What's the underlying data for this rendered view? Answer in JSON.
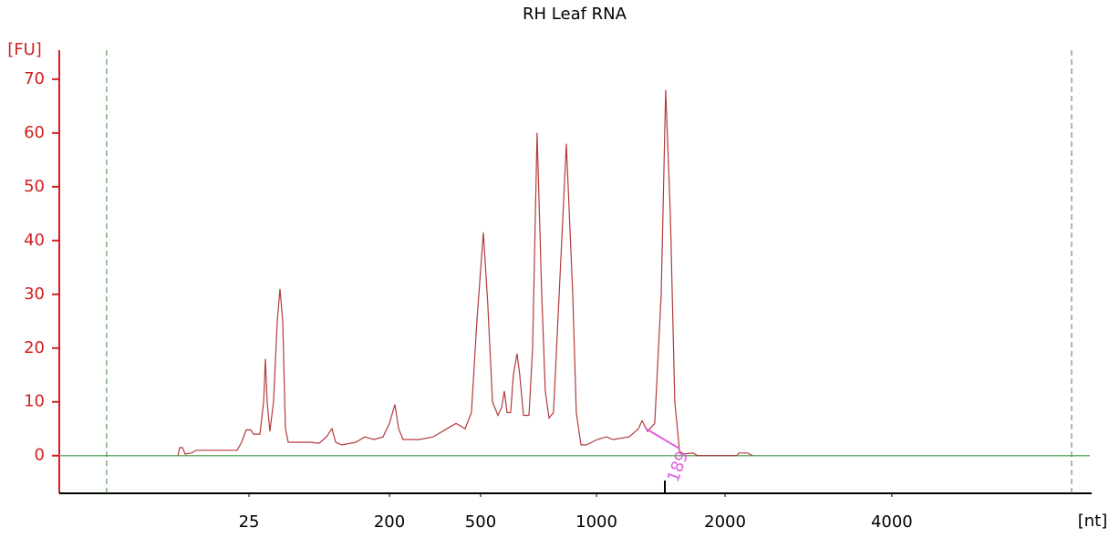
{
  "chart_data": {
    "type": "line",
    "title": "RH Leaf RNA",
    "y_label": "[FU]",
    "x_label": "[nt]",
    "x": [
      23.09,
      23.18,
      23.32,
      23.46,
      23.79,
      24.02,
      26.13,
      26.36,
      26.6,
      26.83,
      26.97,
      27.3,
      27.49,
      27.58,
      27.67,
      27.81,
      28.0,
      28.19,
      28.33,
      28.47,
      28.61,
      28.75,
      29.41,
      29.87,
      30.34,
      30.72,
      31.0,
      31.19,
      31.51,
      32.22,
      32.68,
      33.15,
      33.62,
      33.95,
      34.23,
      34.42,
      34.65,
      35.49,
      36.19,
      36.9,
      37.37,
      37.83,
      38.16,
      38.44,
      38.77,
      39.0,
      39.24,
      39.52,
      39.71,
      39.85,
      39.99,
      40.17,
      40.31,
      40.5,
      40.64,
      40.83,
      41.11,
      41.3,
      41.53,
      41.77,
      41.95,
      42.14,
      42.37,
      42.66,
      43.03,
      43.36,
      43.54,
      43.78,
      44.06,
      44.62,
      45.09,
      45.42,
      46.26,
      46.73,
      46.92,
      47.2,
      47.57,
      47.9,
      48.13,
      48.37,
      48.6,
      48.84,
      49.07,
      49.54,
      49.77,
      51.78,
      51.88,
      52.35,
      52.58
    ],
    "values": [
      0,
      1.5,
      1.5,
      0.3,
      0.5,
      1,
      1,
      2.5,
      4.8,
      4.8,
      4,
      4,
      10,
      18,
      10,
      4.5,
      10,
      25,
      31,
      25,
      5,
      2.5,
      2.5,
      2.5,
      2.3,
      3.5,
      5,
      2.5,
      2,
      2.5,
      3.5,
      3,
      3.5,
      6,
      9.5,
      5,
      3,
      3,
      3.5,
      5,
      6,
      5,
      8,
      25,
      41.5,
      28,
      10,
      7.5,
      9,
      12,
      8,
      8,
      15,
      19,
      15,
      7.5,
      7.5,
      20,
      60,
      30,
      12,
      7,
      8,
      30,
      58,
      30,
      8,
      2,
      2,
      3,
      3.5,
      3,
      3.5,
      5,
      6.5,
      4.5,
      6,
      30,
      68,
      45,
      10,
      0.8,
      0.3,
      0.5,
      0,
      0,
      0.5,
      0.5,
      0
    ],
    "color": "#b23a3a",
    "xlim": [
      17,
      70
    ],
    "xticks": [
      {
        "value": 26.74,
        "label": "25"
      },
      {
        "value": 33.95,
        "label": "200"
      },
      {
        "value": 38.63,
        "label": "500"
      },
      {
        "value": 44.58,
        "label": "1000"
      },
      {
        "value": 51.18,
        "label": "2000"
      },
      {
        "value": 59.74,
        "label": "4000"
      }
    ],
    "ylim": [
      -7,
      75.4
    ],
    "yticks": [
      0,
      10,
      20,
      30,
      40,
      50,
      60,
      70
    ],
    "markers": [
      19.43,
      68.97
    ],
    "annotation": "189"
  }
}
